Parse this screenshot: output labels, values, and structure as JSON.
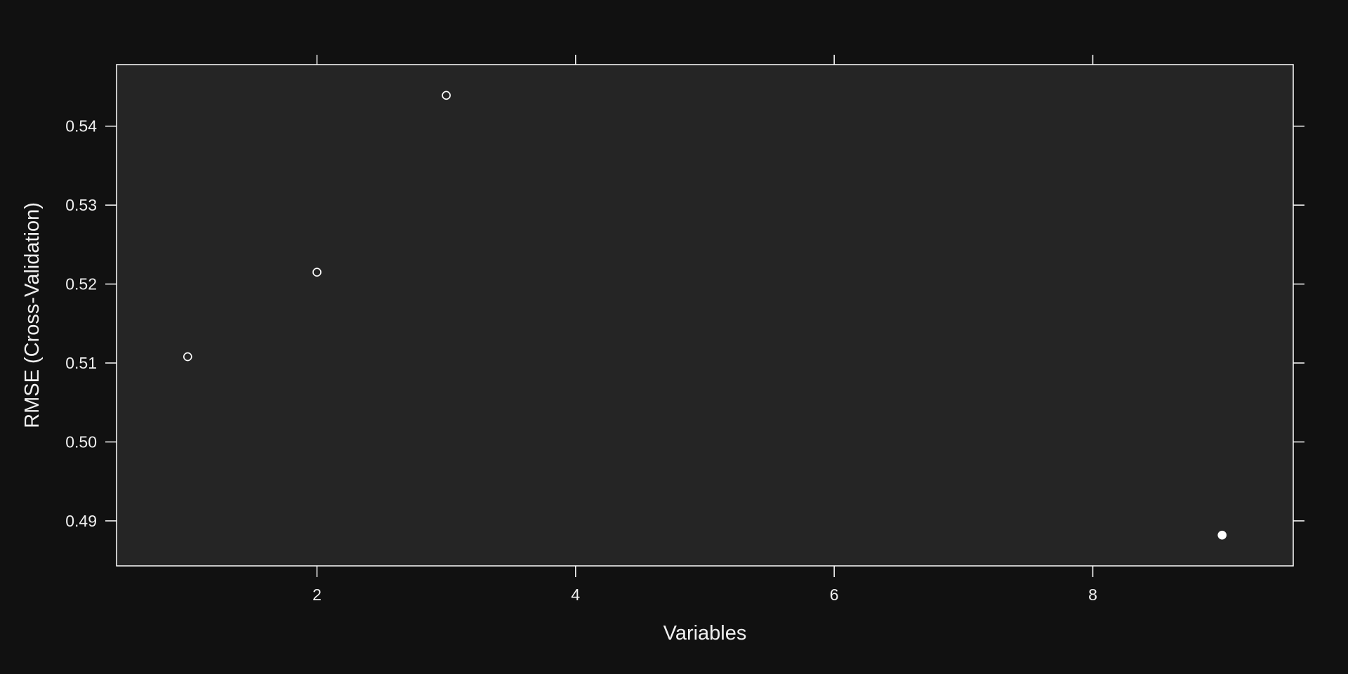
{
  "chart_data": {
    "type": "scatter",
    "title": "",
    "xlabel": "Variables",
    "ylabel": "RMSE (Cross-Validation)",
    "xlim": [
      0.45,
      9.55
    ],
    "ylim": [
      0.4843,
      0.5478
    ],
    "x_ticks": [
      2,
      4,
      6,
      8
    ],
    "y_ticks": [
      0.49,
      0.5,
      0.51,
      0.52,
      0.53,
      0.54
    ],
    "x_tick_labels": [
      "2",
      "4",
      "6",
      "8"
    ],
    "y_tick_labels": [
      "0.49",
      "0.50",
      "0.51",
      "0.52",
      "0.53",
      "0.54"
    ],
    "grid": false,
    "points": [
      {
        "x": 1,
        "y": 0.5108,
        "selected": false
      },
      {
        "x": 2,
        "y": 0.5215,
        "selected": false
      },
      {
        "x": 3,
        "y": 0.5439,
        "selected": false
      },
      {
        "x": 9,
        "y": 0.4882,
        "selected": true
      }
    ],
    "colors": {
      "background": "#111111",
      "panel": "#252525",
      "foreground": "#ffffff"
    }
  }
}
